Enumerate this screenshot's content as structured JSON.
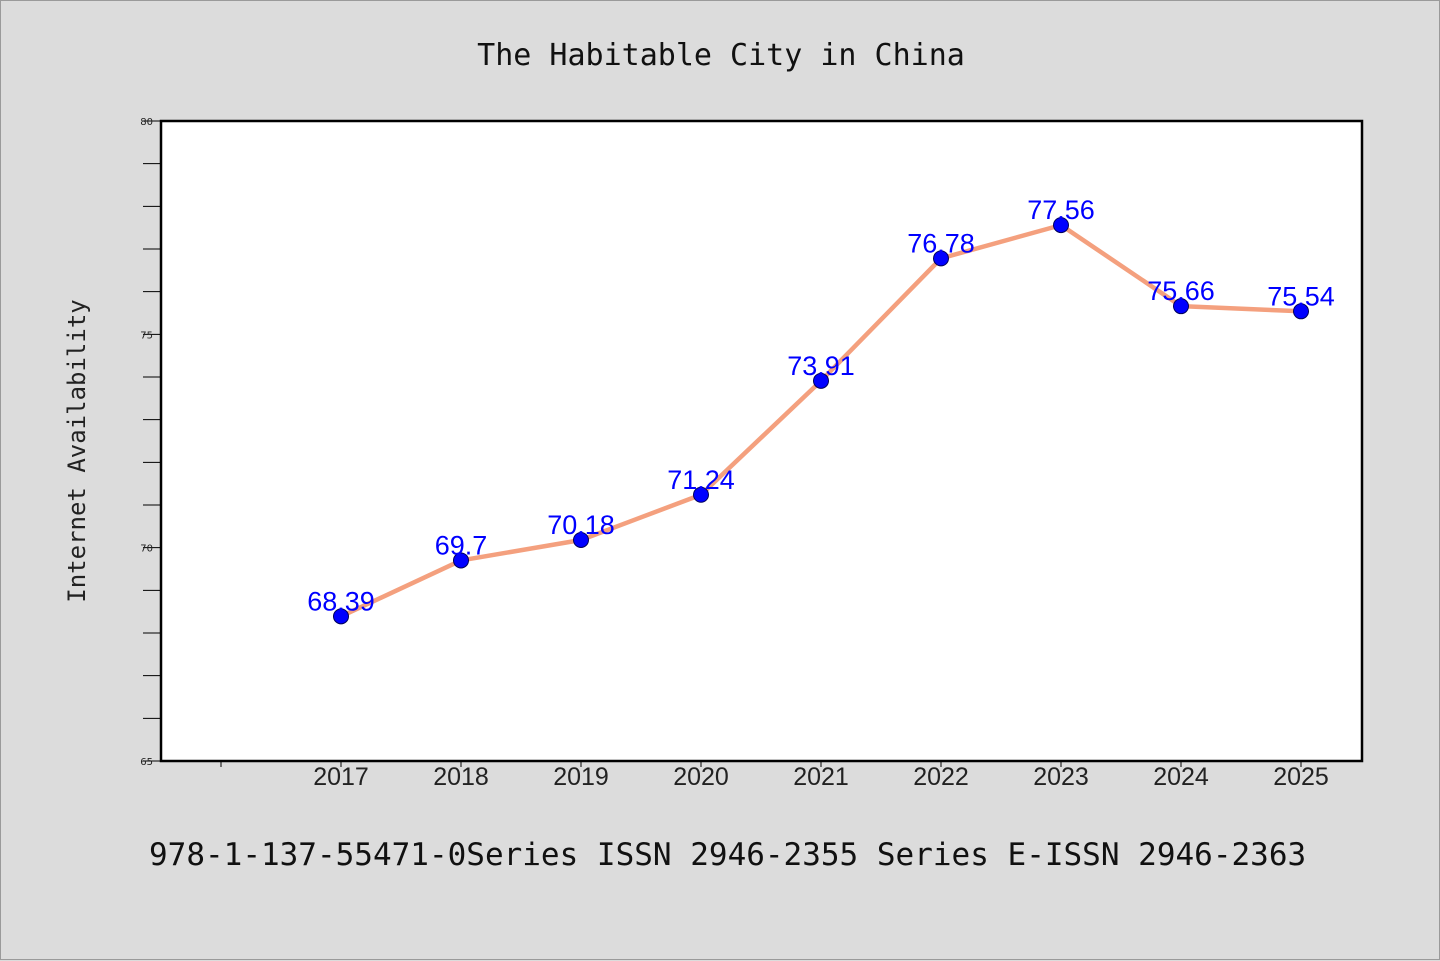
{
  "chart_data": {
    "type": "line",
    "title": "The Habitable City in China",
    "xlabel": "",
    "ylabel": "Internet Availability",
    "categories": [
      "2017",
      "2018",
      "2019",
      "2020",
      "2021",
      "2022",
      "2023",
      "2024",
      "2025"
    ],
    "series": [
      {
        "values": [
          68.39,
          69.7,
          70.18,
          71.24,
          73.91,
          76.78,
          77.56,
          75.66,
          75.54
        ]
      }
    ],
    "data_labels": [
      "68.39",
      "69.7",
      "70.18",
      "71.24",
      "73.91",
      "76.78",
      "77.56",
      "75.66",
      "75.54"
    ],
    "ylim": [
      65,
      80
    ],
    "yticks": [
      "65",
      "70",
      "75",
      "80"
    ],
    "grid": false,
    "legend": "none"
  },
  "footer": {
    "text": "978-1-137-55471-0Series ISSN 2946-2355 Series E-ISSN 2946-2363"
  },
  "colors": {
    "background": "#dcdcdc",
    "plot_area": "#ffffff",
    "line": "#f4a07e",
    "marker": "#0000ff",
    "data_label": "#0000ff",
    "axis": "#000000"
  }
}
